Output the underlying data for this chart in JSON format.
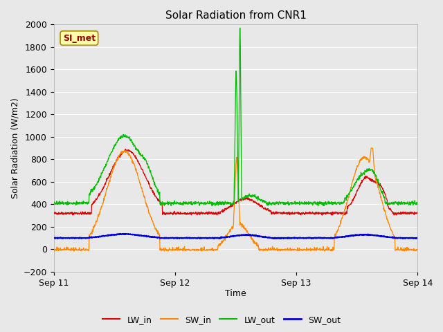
{
  "title": "Solar Radiation from CNR1",
  "xlabel": "Time",
  "ylabel": "Solar Radiation (W/m2)",
  "ylim": [
    -200,
    2000
  ],
  "yticks": [
    -200,
    0,
    200,
    400,
    600,
    800,
    1000,
    1200,
    1400,
    1600,
    1800,
    2000
  ],
  "bg_color": "#e8e8e8",
  "grid_color": "#ffffff",
  "line_colors": {
    "LW_in": "#dd0000",
    "SW_in": "#ff8800",
    "LW_out": "#00bb00",
    "SW_out": "#0000dd"
  },
  "annotation_text": "SI_met",
  "annotation_bg": "#ffffaa",
  "annotation_border": "#aa8800",
  "title_fontsize": 11,
  "tick_fontsize": 9,
  "axis_label_fontsize": 9,
  "legend_fontsize": 9
}
